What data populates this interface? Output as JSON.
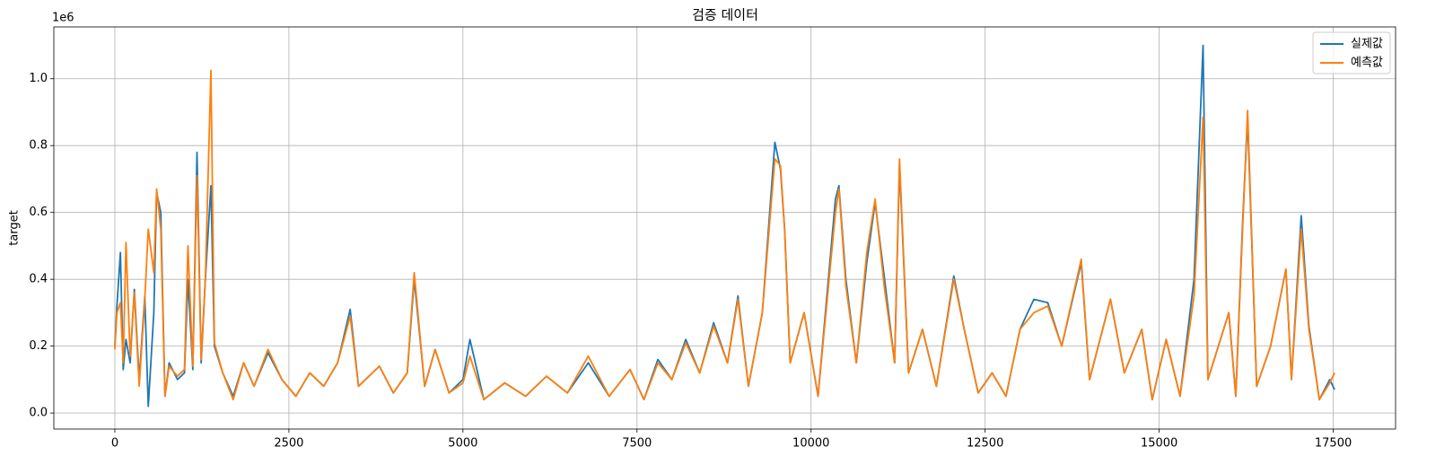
{
  "chart_data": {
    "type": "line",
    "title": "검증 데이터",
    "y_label": "target",
    "y_offset_text": "1e6",
    "x": [
      0,
      30,
      80,
      120,
      160,
      220,
      280,
      350,
      430,
      480,
      560,
      600,
      660,
      720,
      780,
      900,
      1000,
      1050,
      1120,
      1180,
      1240,
      1300,
      1380,
      1430,
      1550,
      1700,
      1850,
      2000,
      2200,
      2400,
      2600,
      2800,
      3000,
      3200,
      3380,
      3500,
      3800,
      4000,
      4200,
      4300,
      4450,
      4600,
      4800,
      5000,
      5100,
      5300,
      5600,
      5900,
      6200,
      6500,
      6800,
      7100,
      7400,
      7600,
      7800,
      8000,
      8200,
      8400,
      8600,
      8800,
      8950,
      9100,
      9300,
      9480,
      9560,
      9620,
      9700,
      9900,
      10100,
      10350,
      10400,
      10500,
      10650,
      10800,
      10920,
      11050,
      11200,
      11270,
      11400,
      11600,
      11800,
      12050,
      12200,
      12400,
      12600,
      12800,
      13000,
      13200,
      13400,
      13600,
      13880,
      14000,
      14300,
      14500,
      14750,
      14900,
      15100,
      15300,
      15500,
      15630,
      15700,
      16000,
      16100,
      16200,
      16270,
      16400,
      16600,
      16820,
      16900,
      17040,
      17150,
      17300,
      17450,
      17519
    ],
    "series": [
      {
        "name": "실제값",
        "color": "#1f77b4",
        "values": [
          0.2,
          0.32,
          0.48,
          0.13,
          0.22,
          0.15,
          0.37,
          0.1,
          0.35,
          0.02,
          0.3,
          0.66,
          0.6,
          0.05,
          0.15,
          0.1,
          0.12,
          0.4,
          0.13,
          0.78,
          0.15,
          0.4,
          0.68,
          0.2,
          0.12,
          0.05,
          0.15,
          0.08,
          0.18,
          0.1,
          0.05,
          0.12,
          0.08,
          0.15,
          0.31,
          0.08,
          0.14,
          0.06,
          0.12,
          0.4,
          0.08,
          0.19,
          0.06,
          0.1,
          0.22,
          0.04,
          0.09,
          0.05,
          0.11,
          0.06,
          0.15,
          0.05,
          0.13,
          0.04,
          0.16,
          0.1,
          0.22,
          0.12,
          0.27,
          0.15,
          0.35,
          0.08,
          0.3,
          0.81,
          0.73,
          0.55,
          0.15,
          0.3,
          0.05,
          0.64,
          0.68,
          0.4,
          0.15,
          0.45,
          0.63,
          0.41,
          0.15,
          0.74,
          0.12,
          0.25,
          0.08,
          0.41,
          0.25,
          0.06,
          0.12,
          0.05,
          0.25,
          0.34,
          0.33,
          0.2,
          0.45,
          0.1,
          0.34,
          0.12,
          0.25,
          0.04,
          0.22,
          0.05,
          0.4,
          1.1,
          0.1,
          0.3,
          0.05,
          0.58,
          0.88,
          0.08,
          0.2,
          0.43,
          0.1,
          0.59,
          0.26,
          0.04,
          0.1,
          0.07
        ]
      },
      {
        "name": "예측값",
        "color": "#ff7f0e",
        "values": [
          0.19,
          0.3,
          0.33,
          0.15,
          0.51,
          0.17,
          0.36,
          0.08,
          0.34,
          0.55,
          0.42,
          0.67,
          0.55,
          0.05,
          0.14,
          0.11,
          0.13,
          0.5,
          0.14,
          0.71,
          0.16,
          0.4,
          1.025,
          0.21,
          0.12,
          0.04,
          0.15,
          0.08,
          0.19,
          0.1,
          0.05,
          0.12,
          0.08,
          0.15,
          0.29,
          0.08,
          0.14,
          0.06,
          0.12,
          0.42,
          0.08,
          0.19,
          0.06,
          0.09,
          0.17,
          0.04,
          0.09,
          0.05,
          0.11,
          0.06,
          0.17,
          0.05,
          0.13,
          0.04,
          0.15,
          0.1,
          0.21,
          0.12,
          0.26,
          0.15,
          0.34,
          0.08,
          0.3,
          0.76,
          0.74,
          0.55,
          0.15,
          0.3,
          0.05,
          0.6,
          0.67,
          0.38,
          0.15,
          0.48,
          0.64,
          0.38,
          0.15,
          0.76,
          0.12,
          0.25,
          0.08,
          0.4,
          0.25,
          0.06,
          0.12,
          0.05,
          0.25,
          0.3,
          0.32,
          0.2,
          0.46,
          0.1,
          0.34,
          0.12,
          0.25,
          0.04,
          0.22,
          0.05,
          0.35,
          0.885,
          0.1,
          0.3,
          0.05,
          0.56,
          0.905,
          0.08,
          0.2,
          0.43,
          0.1,
          0.55,
          0.25,
          0.04,
          0.09,
          0.12
        ]
      }
    ],
    "xlim": [
      -876,
      18395
    ],
    "xticks": [
      0,
      2500,
      5000,
      7500,
      10000,
      12500,
      15000,
      17500
    ],
    "ylim": [
      -0.048,
      1.155
    ],
    "yticks": [
      {
        "value": 0,
        "label": "0.0"
      },
      0.2,
      0.4,
      0.6,
      0.8,
      {
        "value": 1,
        "label": "1.0"
      }
    ],
    "grid": true,
    "legend": "upper right"
  }
}
